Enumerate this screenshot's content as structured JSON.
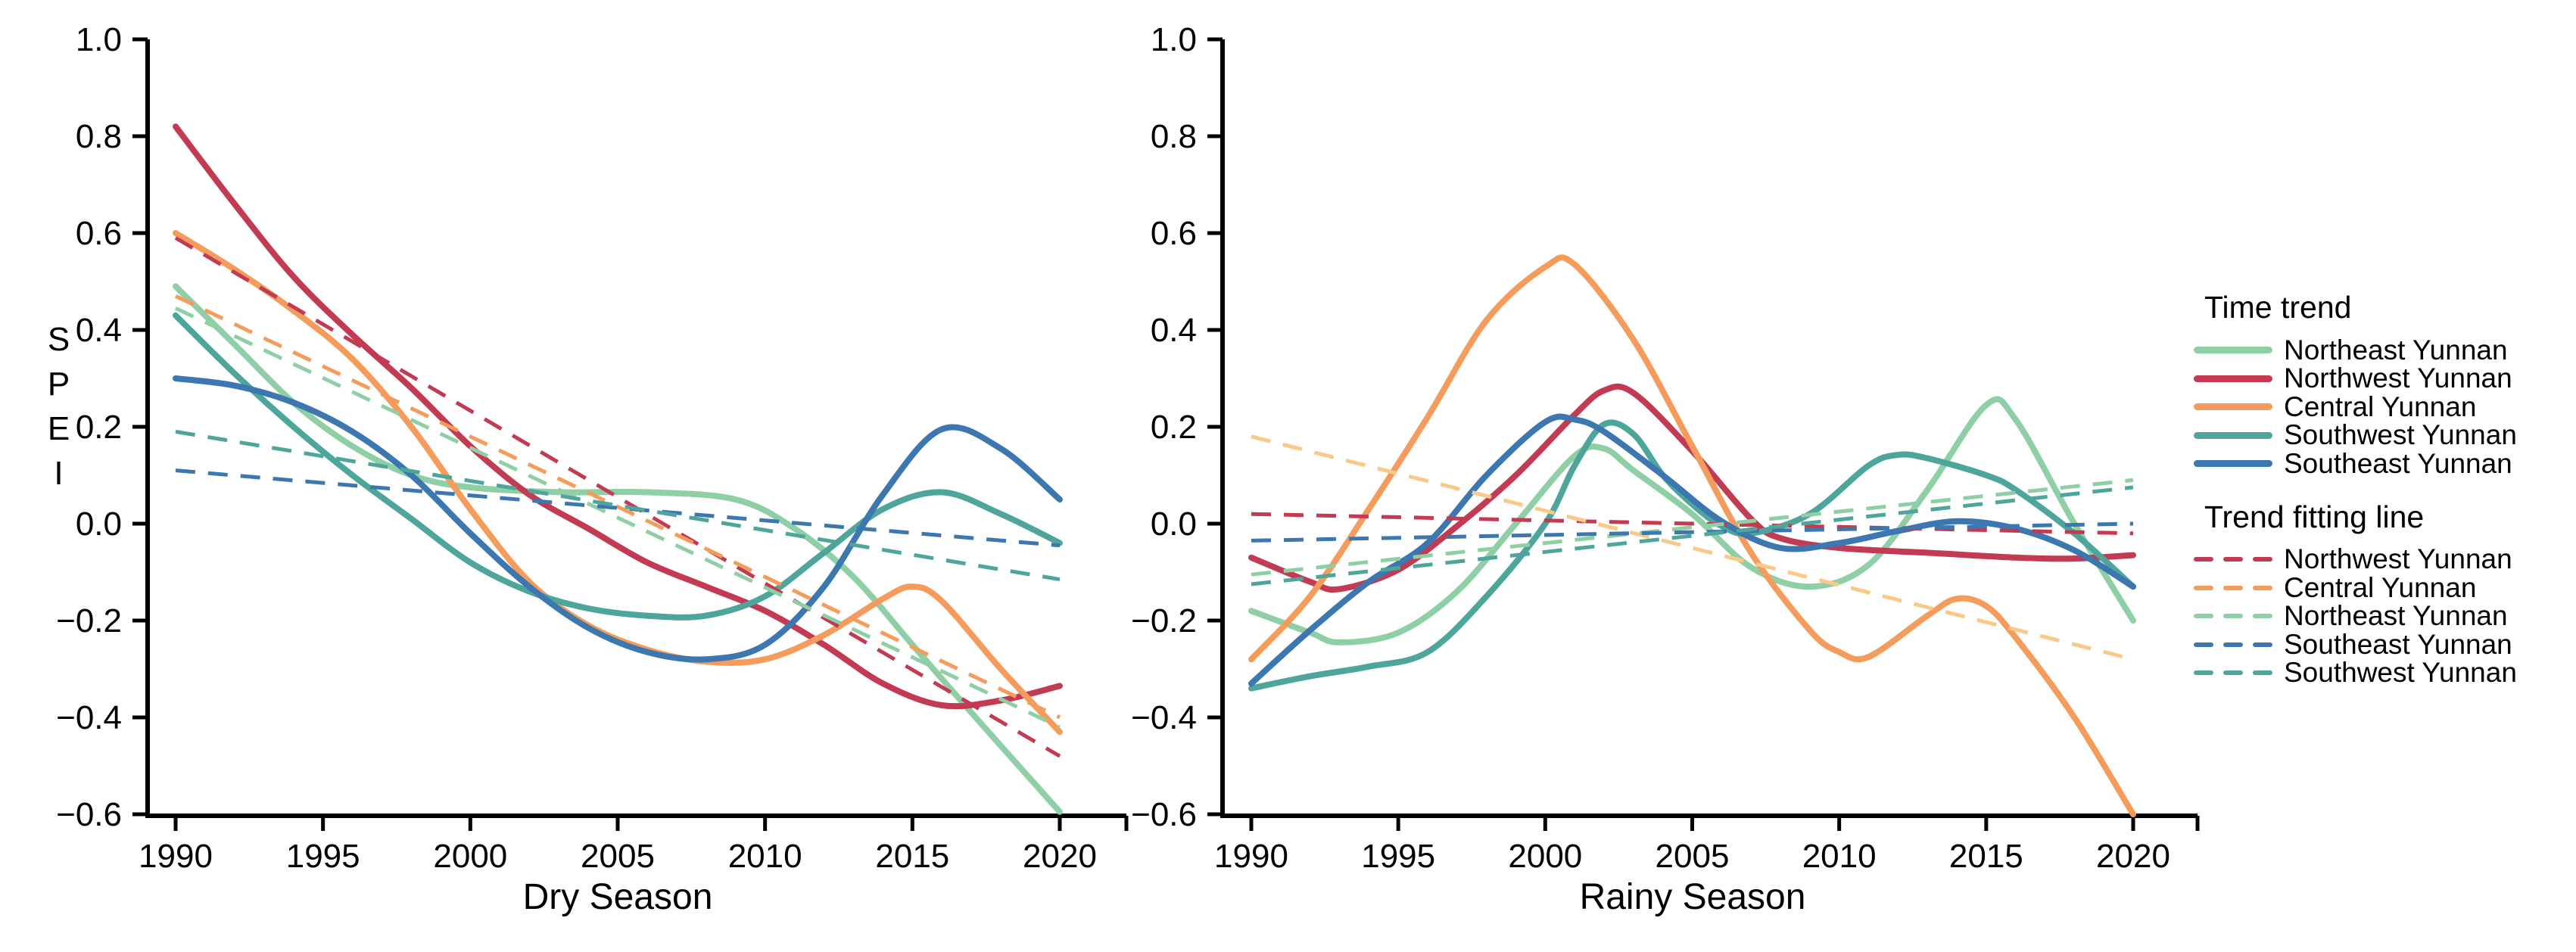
{
  "colors": {
    "northeast": "#8FCFA5",
    "northwest": "#C23B52",
    "central": "#F59C5C",
    "southwest": "#4EA59B",
    "southeast": "#3C77B0",
    "central_pale": "#F9C989",
    "axis": "#000000"
  },
  "y_axis": {
    "label": "SPEI",
    "tick_labels": [
      "1.0",
      "0.8",
      "0.6",
      "0.4",
      "0.2",
      "0.0",
      "−0.2",
      "−0.4",
      "−0.6"
    ],
    "tick_values": [
      1.0,
      0.8,
      0.6,
      0.4,
      0.2,
      0.0,
      -0.2,
      -0.4,
      -0.6
    ]
  },
  "x_axis": {
    "tick_labels": [
      "1990",
      "1995",
      "2000",
      "2005",
      "2010",
      "2015",
      "2020"
    ],
    "tick_values": [
      1990,
      1995,
      2000,
      2005,
      2010,
      2015,
      2020
    ]
  },
  "legend": {
    "time_trend_title": "Time trend",
    "fitting_title": "Trend fitting line",
    "time_trend": [
      {
        "label": "Northeast Yunnan",
        "color": "northeast"
      },
      {
        "label": "Northwest Yunnan",
        "color": "northwest"
      },
      {
        "label": "Central Yunnan",
        "color": "central"
      },
      {
        "label": "Southwest Yunnan",
        "color": "southwest"
      },
      {
        "label": "Southeast Yunnan",
        "color": "southeast"
      }
    ],
    "fitting": [
      {
        "label": "Northwest Yunnan",
        "color": "northwest"
      },
      {
        "label": "Central Yunnan",
        "color": "central"
      },
      {
        "label": "Northeast Yunnan",
        "color": "northeast"
      },
      {
        "label": "Southeast Yunnan",
        "color": "southeast"
      },
      {
        "label": "Southwest Yunnan",
        "color": "southwest"
      }
    ]
  },
  "chart_data": [
    {
      "type": "line",
      "title": "Dry Season",
      "xlabel": "Dry Season",
      "ylabel": "SPEI",
      "xlim": [
        1989,
        2022.3
      ],
      "ylim": [
        -0.6,
        1.0
      ],
      "x_ticks": [
        1990,
        1995,
        2000,
        2005,
        2010,
        2015,
        2020
      ],
      "y_ticks": [
        1.0,
        0.8,
        0.6,
        0.4,
        0.2,
        0.0,
        -0.2,
        -0.4,
        -0.6
      ],
      "grid": false,
      "legend_position": "outside-right",
      "series": [
        {
          "name": "Northeast Yunnan",
          "color": "northeast",
          "style": "solid",
          "points": [
            [
              1990,
              0.49
            ],
            [
              1992,
              0.37
            ],
            [
              1994,
              0.25
            ],
            [
              1996,
              0.16
            ],
            [
              1998,
              0.1
            ],
            [
              2000,
              0.075
            ],
            [
              2003,
              0.065
            ],
            [
              2006,
              0.065
            ],
            [
              2009,
              0.05
            ],
            [
              2011,
              -0.01
            ],
            [
              2013,
              -0.11
            ],
            [
              2015,
              -0.25
            ],
            [
              2017,
              -0.39
            ],
            [
              2020,
              -0.595
            ]
          ]
        },
        {
          "name": "Northwest Yunnan",
          "color": "northwest",
          "style": "solid",
          "points": [
            [
              1990,
              0.82
            ],
            [
              1992,
              0.66
            ],
            [
              1994,
              0.51
            ],
            [
              1996,
              0.39
            ],
            [
              1998,
              0.28
            ],
            [
              2000,
              0.16
            ],
            [
              2002,
              0.06
            ],
            [
              2004,
              -0.01
            ],
            [
              2006,
              -0.08
            ],
            [
              2008,
              -0.13
            ],
            [
              2010,
              -0.18
            ],
            [
              2012,
              -0.25
            ],
            [
              2014,
              -0.33
            ],
            [
              2016,
              -0.375
            ],
            [
              2018,
              -0.365
            ],
            [
              2020,
              -0.335
            ]
          ]
        },
        {
          "name": "Central Yunnan",
          "color": "central",
          "style": "solid",
          "points": [
            [
              1990,
              0.6
            ],
            [
              1992,
              0.525
            ],
            [
              1994,
              0.44
            ],
            [
              1996,
              0.34
            ],
            [
              1998,
              0.2
            ],
            [
              2000,
              0.03
            ],
            [
              2002,
              -0.12
            ],
            [
              2004,
              -0.21
            ],
            [
              2006,
              -0.26
            ],
            [
              2008,
              -0.285
            ],
            [
              2010,
              -0.28
            ],
            [
              2012,
              -0.23
            ],
            [
              2014,
              -0.155
            ],
            [
              2015,
              -0.13
            ],
            [
              2016,
              -0.16
            ],
            [
              2018,
              -0.3
            ],
            [
              2020,
              -0.43
            ]
          ]
        },
        {
          "name": "Southwest Yunnan",
          "color": "southwest",
          "style": "solid",
          "points": [
            [
              1990,
              0.43
            ],
            [
              1992,
              0.31
            ],
            [
              1994,
              0.2
            ],
            [
              1996,
              0.1
            ],
            [
              1998,
              0.01
            ],
            [
              2000,
              -0.08
            ],
            [
              2002,
              -0.14
            ],
            [
              2004,
              -0.175
            ],
            [
              2006,
              -0.19
            ],
            [
              2008,
              -0.19
            ],
            [
              2010,
              -0.15
            ],
            [
              2012,
              -0.06
            ],
            [
              2014,
              0.03
            ],
            [
              2016,
              0.065
            ],
            [
              2018,
              0.02
            ],
            [
              2020,
              -0.04
            ]
          ]
        },
        {
          "name": "Southeast Yunnan",
          "color": "southeast",
          "style": "solid",
          "points": [
            [
              1990,
              0.3
            ],
            [
              1992,
              0.285
            ],
            [
              1994,
              0.25
            ],
            [
              1996,
              0.19
            ],
            [
              1998,
              0.1
            ],
            [
              2000,
              -0.02
            ],
            [
              2002,
              -0.13
            ],
            [
              2004,
              -0.215
            ],
            [
              2006,
              -0.265
            ],
            [
              2008,
              -0.28
            ],
            [
              2010,
              -0.25
            ],
            [
              2012,
              -0.13
            ],
            [
              2014,
              0.06
            ],
            [
              2016,
              0.195
            ],
            [
              2018,
              0.155
            ],
            [
              2020,
              0.05
            ]
          ]
        }
      ],
      "trend_fitting_lines": [
        {
          "name": "Northwest Yunnan",
          "color": "northwest",
          "style": "dashed",
          "points": [
            [
              1990,
              0.59
            ],
            [
              2020,
              -0.48
            ]
          ]
        },
        {
          "name": "Central Yunnan",
          "color": "central",
          "style": "dashed",
          "points": [
            [
              1990,
              0.47
            ],
            [
              2020,
              -0.4
            ]
          ]
        },
        {
          "name": "Northeast Yunnan",
          "color": "northeast",
          "style": "dashed",
          "points": [
            [
              1990,
              0.445
            ],
            [
              2020,
              -0.42
            ]
          ]
        },
        {
          "name": "Southeast Yunnan",
          "color": "southeast",
          "style": "dashed",
          "points": [
            [
              1990,
              0.11
            ],
            [
              2020,
              -0.045
            ]
          ]
        },
        {
          "name": "Southwest Yunnan",
          "color": "southwest",
          "style": "dashed",
          "points": [
            [
              1990,
              0.19
            ],
            [
              2020,
              -0.115
            ]
          ]
        }
      ]
    },
    {
      "type": "line",
      "title": "Rainy Season",
      "xlabel": "Rainy Season",
      "ylabel": "SPEI",
      "xlim": [
        1989,
        2022.3
      ],
      "ylim": [
        -0.6,
        1.0
      ],
      "x_ticks": [
        1990,
        1995,
        2000,
        2005,
        2010,
        2015,
        2020
      ],
      "y_ticks": [
        1.0,
        0.8,
        0.6,
        0.4,
        0.2,
        0.0,
        -0.2,
        -0.4,
        -0.6
      ],
      "grid": false,
      "legend_position": "outside-right",
      "series": [
        {
          "name": "Northeast Yunnan",
          "color": "northeast",
          "style": "solid",
          "points": [
            [
              1990,
              -0.18
            ],
            [
              1992,
              -0.225
            ],
            [
              1993,
              -0.245
            ],
            [
              1995,
              -0.225
            ],
            [
              1997,
              -0.14
            ],
            [
              1999,
              0.0
            ],
            [
              2001,
              0.14
            ],
            [
              2002,
              0.155
            ],
            [
              2003,
              0.11
            ],
            [
              2005,
              0.02
            ],
            [
              2007,
              -0.09
            ],
            [
              2009,
              -0.13
            ],
            [
              2011,
              -0.085
            ],
            [
              2013,
              0.07
            ],
            [
              2015,
              0.245
            ],
            [
              2016,
              0.215
            ],
            [
              2018,
              0.0
            ],
            [
              2020,
              -0.2
            ]
          ]
        },
        {
          "name": "Northwest Yunnan",
          "color": "northwest",
          "style": "solid",
          "points": [
            [
              1990,
              -0.07
            ],
            [
              1992,
              -0.12
            ],
            [
              1993,
              -0.135
            ],
            [
              1995,
              -0.095
            ],
            [
              1997,
              -0.005
            ],
            [
              1999,
              0.1
            ],
            [
              2001,
              0.225
            ],
            [
              2002,
              0.275
            ],
            [
              2003,
              0.27
            ],
            [
              2005,
              0.15
            ],
            [
              2007,
              0.01
            ],
            [
              2008,
              -0.03
            ],
            [
              2010,
              -0.05
            ],
            [
              2013,
              -0.06
            ],
            [
              2016,
              -0.07
            ],
            [
              2018,
              -0.072
            ],
            [
              2020,
              -0.065
            ]
          ]
        },
        {
          "name": "Central Yunnan",
          "color": "central",
          "style": "solid",
          "points": [
            [
              1990,
              -0.28
            ],
            [
              1992,
              -0.15
            ],
            [
              1994,
              0.03
            ],
            [
              1996,
              0.22
            ],
            [
              1998,
              0.42
            ],
            [
              2000,
              0.53
            ],
            [
              2001,
              0.535
            ],
            [
              2003,
              0.38
            ],
            [
              2005,
              0.16
            ],
            [
              2007,
              -0.06
            ],
            [
              2009,
              -0.22
            ],
            [
              2010,
              -0.265
            ],
            [
              2011,
              -0.275
            ],
            [
              2013,
              -0.19
            ],
            [
              2014,
              -0.155
            ],
            [
              2015,
              -0.17
            ],
            [
              2016,
              -0.235
            ],
            [
              2018,
              -0.4
            ],
            [
              2020,
              -0.6
            ]
          ]
        },
        {
          "name": "Southwest Yunnan",
          "color": "southwest",
          "style": "solid",
          "points": [
            [
              1990,
              -0.34
            ],
            [
              1992,
              -0.315
            ],
            [
              1994,
              -0.295
            ],
            [
              1996,
              -0.265
            ],
            [
              1998,
              -0.15
            ],
            [
              2000,
              0.0
            ],
            [
              2001,
              0.12
            ],
            [
              2002,
              0.205
            ],
            [
              2003,
              0.185
            ],
            [
              2004,
              0.1
            ],
            [
              2005,
              0.04
            ],
            [
              2006,
              -0.005
            ],
            [
              2007,
              -0.02
            ],
            [
              2009,
              0.02
            ],
            [
              2011,
              0.12
            ],
            [
              2012,
              0.142
            ],
            [
              2013,
              0.135
            ],
            [
              2015,
              0.1
            ],
            [
              2016,
              0.07
            ],
            [
              2018,
              -0.02
            ],
            [
              2020,
              -0.13
            ]
          ]
        },
        {
          "name": "Southeast Yunnan",
          "color": "southeast",
          "style": "solid",
          "points": [
            [
              1990,
              -0.33
            ],
            [
              1992,
              -0.22
            ],
            [
              1994,
              -0.12
            ],
            [
              1996,
              -0.04
            ],
            [
              1998,
              0.1
            ],
            [
              2000,
              0.21
            ],
            [
              2001,
              0.215
            ],
            [
              2002,
              0.19
            ],
            [
              2004,
              0.1
            ],
            [
              2006,
              0.005
            ],
            [
              2008,
              -0.05
            ],
            [
              2010,
              -0.04
            ],
            [
              2012,
              -0.015
            ],
            [
              2014,
              0.005
            ],
            [
              2016,
              -0.01
            ],
            [
              2018,
              -0.055
            ],
            [
              2020,
              -0.13
            ]
          ]
        }
      ],
      "trend_fitting_lines": [
        {
          "name": "Northwest Yunnan",
          "color": "northwest",
          "style": "dashed",
          "points": [
            [
              1990,
              0.02
            ],
            [
              2020,
              -0.02
            ]
          ]
        },
        {
          "name": "Central Yunnan",
          "color": "central_pale",
          "style": "dashed",
          "points": [
            [
              1990,
              0.18
            ],
            [
              2020,
              -0.28
            ]
          ]
        },
        {
          "name": "Northeast Yunnan",
          "color": "northeast",
          "style": "dashed",
          "points": [
            [
              1990,
              -0.105
            ],
            [
              2020,
              0.09
            ]
          ]
        },
        {
          "name": "Southeast Yunnan",
          "color": "southeast",
          "style": "dashed",
          "points": [
            [
              1990,
              -0.035
            ],
            [
              2020,
              0.0
            ]
          ]
        },
        {
          "name": "Southwest Yunnan",
          "color": "southwest",
          "style": "dashed",
          "points": [
            [
              1990,
              -0.125
            ],
            [
              2020,
              0.075
            ]
          ]
        }
      ]
    }
  ]
}
